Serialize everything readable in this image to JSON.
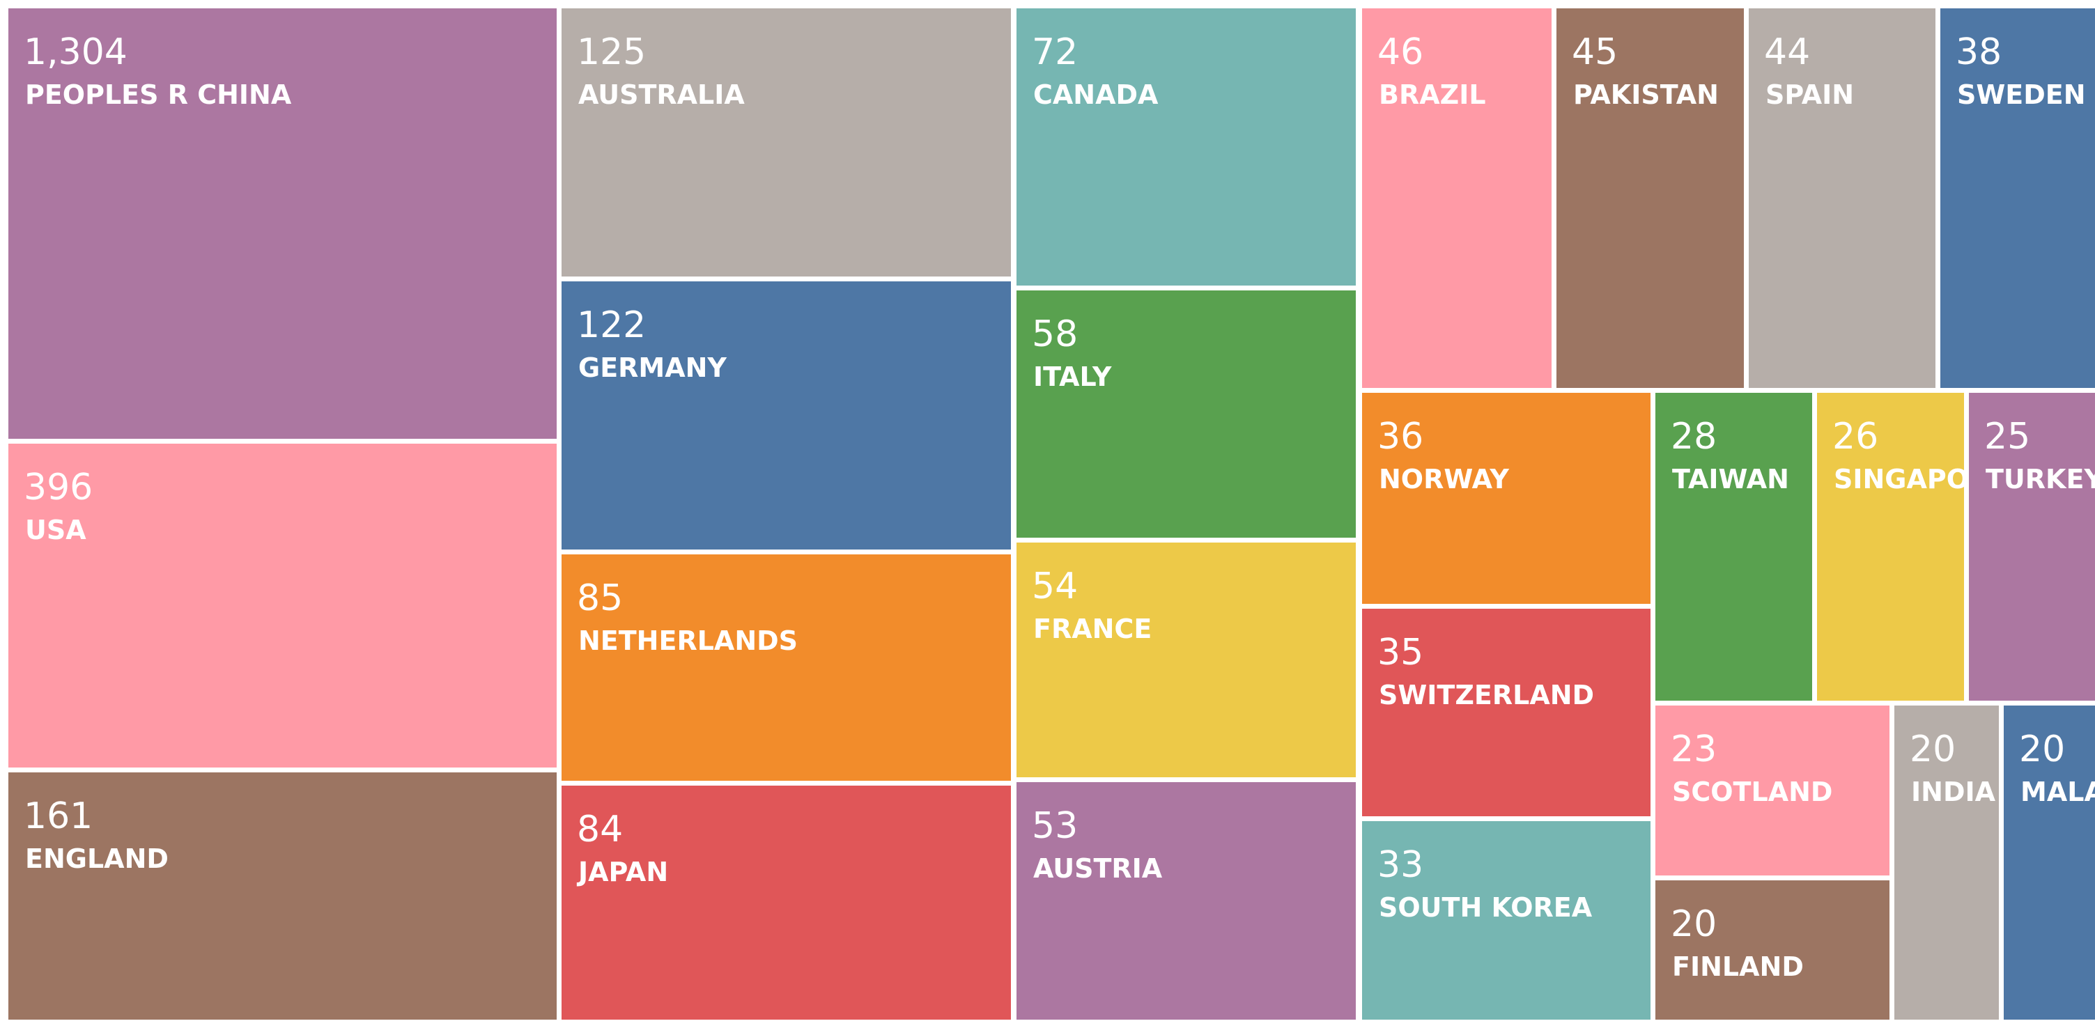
{
  "chart_data": {
    "type": "treemap",
    "title": "",
    "cells": [
      {
        "label": "PEOPLES R CHINA",
        "value": 1304,
        "value_text": "1,304",
        "color": "#AC77A1"
      },
      {
        "label": "USA",
        "value": 396,
        "value_text": "396",
        "color": "#FF9AA6"
      },
      {
        "label": "ENGLAND",
        "value": 161,
        "value_text": "161",
        "color": "#9C7562"
      },
      {
        "label": "AUSTRALIA",
        "value": 125,
        "value_text": "125",
        "color": "#B6AEA9"
      },
      {
        "label": "GERMANY",
        "value": 122,
        "value_text": "122",
        "color": "#4E77A5"
      },
      {
        "label": "NETHERLANDS",
        "value": 85,
        "value_text": "85",
        "color": "#F28C2B"
      },
      {
        "label": "JAPAN",
        "value": 84,
        "value_text": "84",
        "color": "#E05658"
      },
      {
        "label": "CANADA",
        "value": 72,
        "value_text": "72",
        "color": "#76B6B2"
      },
      {
        "label": "ITALY",
        "value": 58,
        "value_text": "58",
        "color": "#59A14F"
      },
      {
        "label": "FRANCE",
        "value": 54,
        "value_text": "54",
        "color": "#EDC948"
      },
      {
        "label": "AUSTRIA",
        "value": 53,
        "value_text": "53",
        "color": "#AC77A1"
      },
      {
        "label": "BRAZIL",
        "value": 46,
        "value_text": "46",
        "color": "#FF9AA6"
      },
      {
        "label": "PAKISTAN",
        "value": 45,
        "value_text": "45",
        "color": "#9C7562"
      },
      {
        "label": "SPAIN",
        "value": 44,
        "value_text": "44",
        "color": "#B6AEA9"
      },
      {
        "label": "SWEDEN",
        "value": 38,
        "value_text": "38",
        "color": "#4E77A5"
      },
      {
        "label": "NORWAY",
        "value": 36,
        "value_text": "36",
        "color": "#F28C2B"
      },
      {
        "label": "SWITZERLAND",
        "value": 35,
        "value_text": "35",
        "color": "#E05658"
      },
      {
        "label": "SOUTH KOREA",
        "value": 33,
        "value_text": "33",
        "color": "#76B6B2"
      },
      {
        "label": "TAIWAN",
        "value": 28,
        "value_text": "28",
        "color": "#59A14F"
      },
      {
        "label": "SINGAPORE",
        "value": 26,
        "value_text": "26",
        "color": "#EDC948"
      },
      {
        "label": "TURKEY",
        "value": 25,
        "value_text": "25",
        "color": "#AC77A1"
      },
      {
        "label": "SCOTLAND",
        "value": 23,
        "value_text": "23",
        "color": "#FF9AA6"
      },
      {
        "label": "FINLAND",
        "value": 20,
        "value_text": "20",
        "color": "#9C7562"
      },
      {
        "label": "INDIA",
        "value": 20,
        "value_text": "20",
        "color": "#B6AEA9"
      },
      {
        "label": "MALAYSIA",
        "value": 20,
        "value_text": "20",
        "color": "#4E77A5"
      }
    ]
  }
}
